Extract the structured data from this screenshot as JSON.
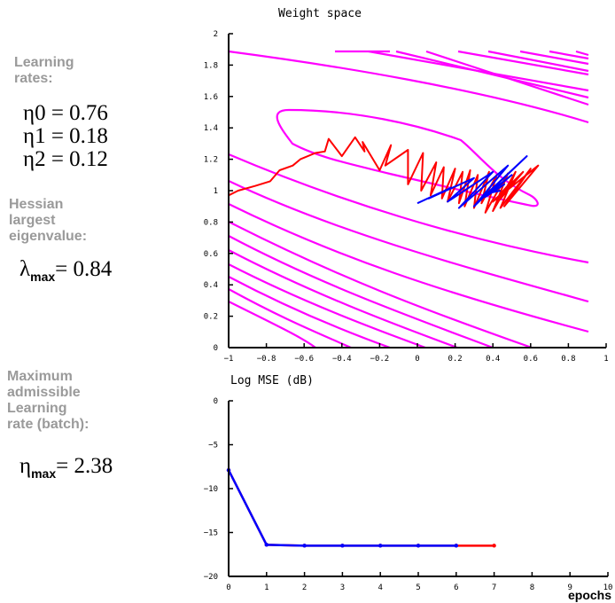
{
  "sidebar": {
    "learning_rates_title_line1": "Learning",
    "learning_rates_title_line2": "rates:",
    "eta0": "η0 = 0.76",
    "eta1": "η1 = 0.18",
    "eta2": "η2 = 0.12",
    "hessian_title_line1": "Hessian",
    "hessian_title_line2": "largest",
    "hessian_title_line3": "eigenvalue:",
    "lambda_symbol": "λ",
    "lambda_sub": "max",
    "lambda_value": "= 0.84",
    "max_rate_title_line1": "Maximum",
    "max_rate_title_line2": "admissible",
    "max_rate_title_line3": "Learning",
    "max_rate_title_line4": "rate (batch):",
    "eta_symbol": "η",
    "eta_sub": "max",
    "eta_value": "= 2.38"
  },
  "colors": {
    "contour": "#ff00ff",
    "red": "#ff0000",
    "blue": "#0000ff",
    "axis": "#000000",
    "label_gray": "#9a9a9a"
  },
  "chart_data": [
    {
      "type": "line",
      "title": "Weight space",
      "xlim": [
        -1,
        1
      ],
      "ylim": [
        0,
        2
      ],
      "x_ticks": [
        "−1",
        "−0.8",
        "−0.6",
        "−0.4",
        "−0.2",
        "0",
        "0.2",
        "0.4",
        "0.6",
        "0.8",
        "1"
      ],
      "y_ticks": [
        "0",
        "0.2",
        "0.4",
        "0.6",
        "0.8",
        "1",
        "1.2",
        "1.4",
        "1.6",
        "1.8",
        "2"
      ],
      "series": [
        {
          "color": "red",
          "x": [
            -1.0,
            -0.95,
            -0.86,
            -0.78,
            -0.73,
            -0.66,
            -0.62,
            -0.54,
            -0.49,
            -0.47,
            -0.4,
            -0.33,
            -0.28,
            -0.29,
            -0.2,
            -0.14,
            -0.17,
            -0.05,
            -0.05,
            0.03,
            0.02,
            0.1,
            0.07,
            0.14,
            0.13,
            0.2,
            0.16,
            0.24,
            0.22,
            0.28,
            0.25,
            0.32,
            0.3,
            0.38,
            0.34,
            0.42,
            0.36,
            0.48,
            0.4,
            0.52,
            0.44,
            0.6,
            0.46,
            0.64,
            0.4,
            0.56,
            0.42,
            0.5,
            0.44,
            0.48
          ],
          "y": [
            0.97,
            1.0,
            1.03,
            1.06,
            1.13,
            1.16,
            1.2,
            1.24,
            1.25,
            1.33,
            1.22,
            1.34,
            1.25,
            1.31,
            1.13,
            1.29,
            1.16,
            1.26,
            1.04,
            1.24,
            1.0,
            1.18,
            0.97,
            1.15,
            0.95,
            1.14,
            0.93,
            1.12,
            0.92,
            1.13,
            0.9,
            1.1,
            0.89,
            1.12,
            0.92,
            1.1,
            0.86,
            1.11,
            0.87,
            1.12,
            0.89,
            1.14,
            0.9,
            1.16,
            0.93,
            1.12,
            0.92,
            1.06,
            0.98,
            1.02
          ]
        },
        {
          "color": "blue",
          "x": [
            0.0,
            0.18,
            0.06,
            0.3,
            0.16,
            0.4,
            0.22,
            0.48,
            0.3,
            0.58,
            0.34,
            0.5,
            0.36,
            0.46,
            0.4,
            0.44
          ],
          "y": [
            0.92,
            1.02,
            0.95,
            1.08,
            0.93,
            1.12,
            0.89,
            1.16,
            0.9,
            1.22,
            0.95,
            1.1,
            0.96,
            1.04,
            0.99,
            1.0
          ]
        }
      ]
    },
    {
      "type": "line",
      "title": "Log MSE (dB)",
      "xlabel": "epochs",
      "xlim": [
        0,
        10
      ],
      "ylim": [
        -20,
        0
      ],
      "x_ticks": [
        "0",
        "1",
        "2",
        "3",
        "4",
        "5",
        "6",
        "7",
        "8",
        "9",
        "10"
      ],
      "y_ticks": [
        "0",
        "−5",
        "−10",
        "−15",
        "−20"
      ],
      "series": [
        {
          "color": "red",
          "x": [
            0,
            1,
            2,
            3,
            4,
            5,
            6,
            7
          ],
          "y": [
            -7.9,
            -16.4,
            -16.5,
            -16.5,
            -16.5,
            -16.5,
            -16.5,
            -16.5
          ]
        },
        {
          "color": "blue",
          "x": [
            0,
            1,
            2,
            3,
            4,
            5,
            6
          ],
          "y": [
            -7.9,
            -16.4,
            -16.5,
            -16.5,
            -16.5,
            -16.5,
            -16.5
          ]
        }
      ]
    }
  ]
}
